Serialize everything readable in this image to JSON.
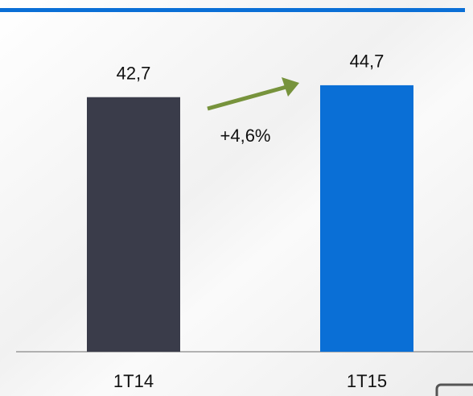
{
  "chart_data": {
    "type": "bar",
    "categories": [
      "1T14",
      "1T15"
    ],
    "values": [
      42.7,
      44.7
    ],
    "value_labels": [
      "42,7",
      "44,7"
    ],
    "colors": [
      "#3a3c4a",
      "#0a6fd6"
    ],
    "ylim": [
      0,
      59
    ],
    "annotation": "+4,6%",
    "annotation_color": "#77933c"
  }
}
